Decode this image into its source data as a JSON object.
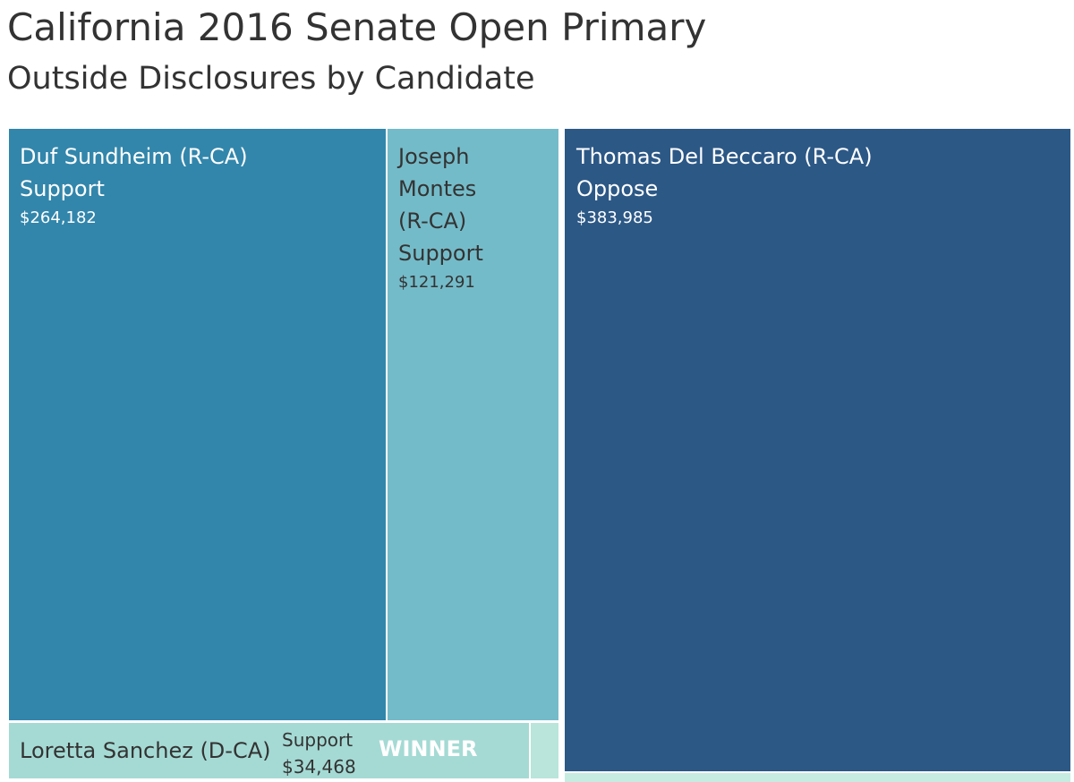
{
  "title": "California 2016 Senate Open Primary",
  "subtitle": "Outside Disclosures by Candidate",
  "chart_data": {
    "type": "treemap",
    "title": "California 2016 Senate Open Primary",
    "subtitle": "Outside Disclosures by Candidate",
    "cells": [
      {
        "candidate": "Thomas Del Beccaro (R-CA)",
        "stance": "Oppose",
        "amount": 383985,
        "amount_label": "$383,985",
        "color": "#2c5886"
      },
      {
        "candidate": "Duf Sundheim (R-CA)",
        "stance": "Support",
        "amount": 264182,
        "amount_label": "$264,182",
        "color": "#3286ab"
      },
      {
        "candidate": "Joseph Montes (R-CA)",
        "candidate_lines": [
          "Joseph",
          "Montes",
          "(R-CA)"
        ],
        "stance": "Support",
        "amount": 121291,
        "amount_label": "$121,291",
        "color": "#74bbc9"
      },
      {
        "candidate": "Loretta Sanchez (D-CA)",
        "stance": "Support",
        "amount": 34468,
        "amount_label": "$34,468",
        "color": "#a5dad4",
        "annotation": "WINNER"
      },
      {
        "candidate": "",
        "stance": "",
        "amount_label": "",
        "color": "#b9e5da"
      },
      {
        "candidate": "",
        "stance": "",
        "amount_label": "",
        "color": "#c6ece2"
      }
    ]
  }
}
